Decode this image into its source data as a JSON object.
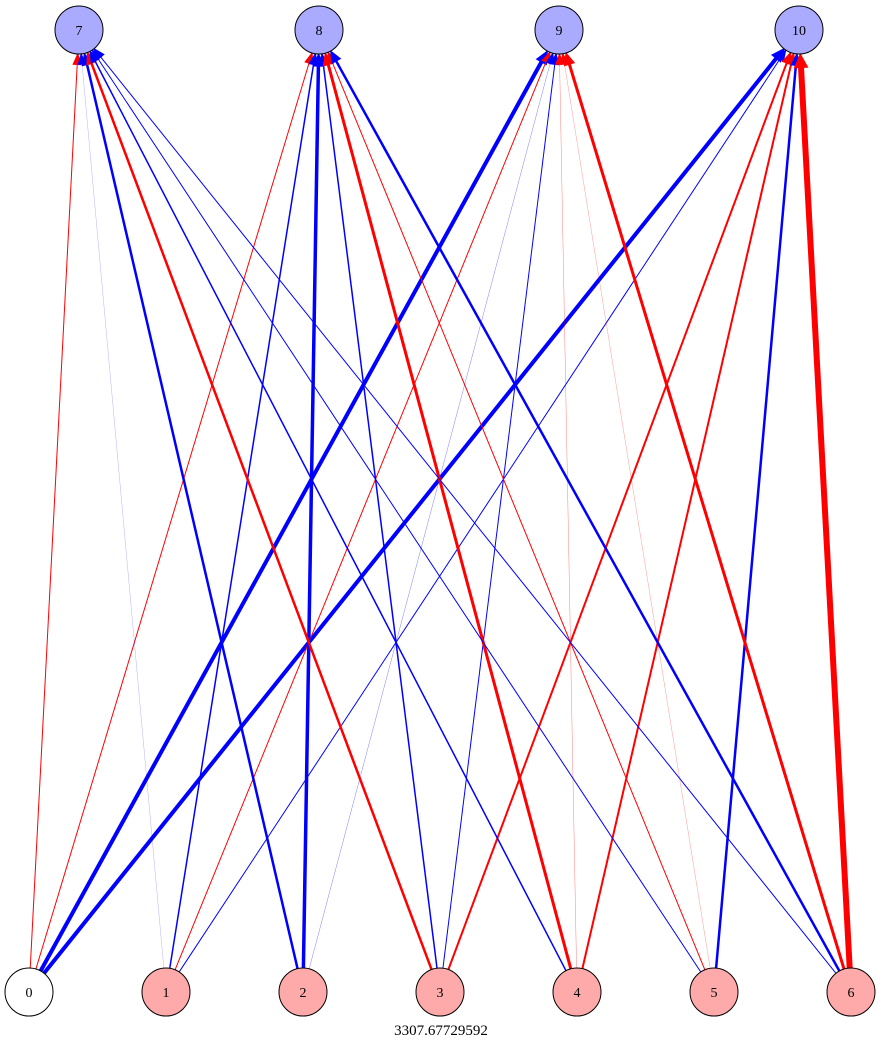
{
  "diagram": {
    "caption": "3307.67729592",
    "colors": {
      "background": "#ffffff",
      "positive": "#ff0000",
      "negative": "#0000ff",
      "output_fill": "#aaaaff",
      "input_fill": "#ffaaaa",
      "bias_fill": "#ffffff",
      "node_stroke": "#000000"
    },
    "output_nodes": [
      {
        "id": "7",
        "label": "7"
      },
      {
        "id": "8",
        "label": "8"
      },
      {
        "id": "9",
        "label": "9"
      },
      {
        "id": "10",
        "label": "10"
      }
    ],
    "input_nodes": [
      {
        "id": "0",
        "label": "0",
        "kind": "bias"
      },
      {
        "id": "1",
        "label": "1",
        "kind": "input"
      },
      {
        "id": "2",
        "label": "2",
        "kind": "input"
      },
      {
        "id": "3",
        "label": "3",
        "kind": "input"
      },
      {
        "id": "4",
        "label": "4",
        "kind": "input"
      },
      {
        "id": "5",
        "label": "5",
        "kind": "input"
      },
      {
        "id": "6",
        "label": "6",
        "kind": "input"
      }
    ],
    "edges": [
      {
        "from": "0",
        "to": "7",
        "sign": "positive",
        "weight": 1
      },
      {
        "from": "0",
        "to": "8",
        "sign": "positive",
        "weight": 1
      },
      {
        "from": "0",
        "to": "9",
        "sign": "negative",
        "weight": 4
      },
      {
        "from": "0",
        "to": "10",
        "sign": "negative",
        "weight": 4
      },
      {
        "from": "1",
        "to": "7",
        "sign": "negative",
        "weight": 0.3
      },
      {
        "from": "1",
        "to": "8",
        "sign": "negative",
        "weight": 1.5
      },
      {
        "from": "1",
        "to": "9",
        "sign": "positive",
        "weight": 1
      },
      {
        "from": "1",
        "to": "10",
        "sign": "negative",
        "weight": 1
      },
      {
        "from": "2",
        "to": "7",
        "sign": "negative",
        "weight": 2.5
      },
      {
        "from": "2",
        "to": "8",
        "sign": "negative",
        "weight": 3.5
      },
      {
        "from": "2",
        "to": "9",
        "sign": "negative",
        "weight": 0.5
      },
      {
        "from": "3",
        "to": "7",
        "sign": "positive",
        "weight": 2.5
      },
      {
        "from": "3",
        "to": "8",
        "sign": "negative",
        "weight": 1.5
      },
      {
        "from": "3",
        "to": "9",
        "sign": "negative",
        "weight": 1
      },
      {
        "from": "3",
        "to": "10",
        "sign": "positive",
        "weight": 2
      },
      {
        "from": "4",
        "to": "7",
        "sign": "negative",
        "weight": 1.5
      },
      {
        "from": "4",
        "to": "8",
        "sign": "positive",
        "weight": 3
      },
      {
        "from": "4",
        "to": "9",
        "sign": "positive",
        "weight": 0.5
      },
      {
        "from": "4",
        "to": "10",
        "sign": "positive",
        "weight": 2
      },
      {
        "from": "5",
        "to": "7",
        "sign": "negative",
        "weight": 1
      },
      {
        "from": "5",
        "to": "8",
        "sign": "positive",
        "weight": 1
      },
      {
        "from": "5",
        "to": "9",
        "sign": "positive",
        "weight": 0.4
      },
      {
        "from": "5",
        "to": "10",
        "sign": "negative",
        "weight": 2.5
      },
      {
        "from": "6",
        "to": "7",
        "sign": "negative",
        "weight": 1
      },
      {
        "from": "6",
        "to": "8",
        "sign": "negative",
        "weight": 2.5
      },
      {
        "from": "6",
        "to": "9",
        "sign": "positive",
        "weight": 3
      },
      {
        "from": "6",
        "to": "10",
        "sign": "positive",
        "weight": 6
      }
    ]
  }
}
